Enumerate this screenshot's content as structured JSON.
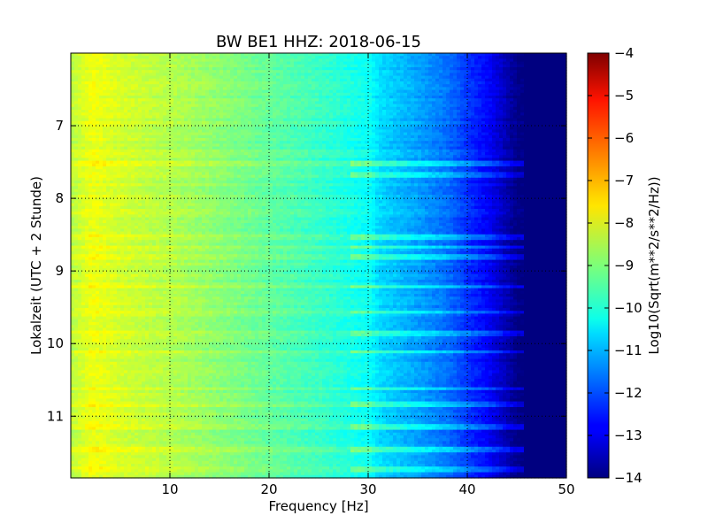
{
  "chart_data": {
    "type": "heatmap",
    "title": "BW BE1 HHZ: 2018-06-15",
    "xlabel": "Frequency [Hz]",
    "ylabel": "Lokalzeit (UTC + 2 Stunde)",
    "xlim": [
      0,
      50
    ],
    "ylim": [
      6.0,
      11.85
    ],
    "y_inverted": true,
    "grid": true,
    "x_ticks": [
      10,
      20,
      30,
      40,
      50
    ],
    "y_ticks": [
      7,
      8,
      9,
      10,
      11
    ],
    "colorbar": {
      "label": "Log10(Sqrt(m**2/s**2/Hz))",
      "colormap": "jet",
      "range": [
        -14,
        -4
      ],
      "ticks": [
        -4,
        -5,
        -6,
        -7,
        -8,
        -9,
        -10,
        -11,
        -12,
        -13,
        -14
      ]
    },
    "spectrum_profile": {
      "frequency_hz": [
        0,
        2,
        5,
        10,
        15,
        20,
        25,
        30,
        31,
        33,
        35,
        38,
        40,
        42,
        43,
        44,
        45,
        50
      ],
      "log10_amplitude": [
        -8.4,
        -7.9,
        -8.2,
        -8.5,
        -8.9,
        -9.3,
        -9.7,
        -10.2,
        -10.6,
        -10.9,
        -11.2,
        -11.7,
        -12.3,
        -12.8,
        -13.2,
        -13.6,
        -14.0,
        -14.0
      ]
    },
    "bright_bands_hour": [
      7.5,
      7.65,
      8.52,
      8.65,
      8.78,
      9.2,
      9.55,
      9.85,
      10.1,
      10.6,
      10.82,
      11.12,
      11.45,
      11.72
    ]
  }
}
